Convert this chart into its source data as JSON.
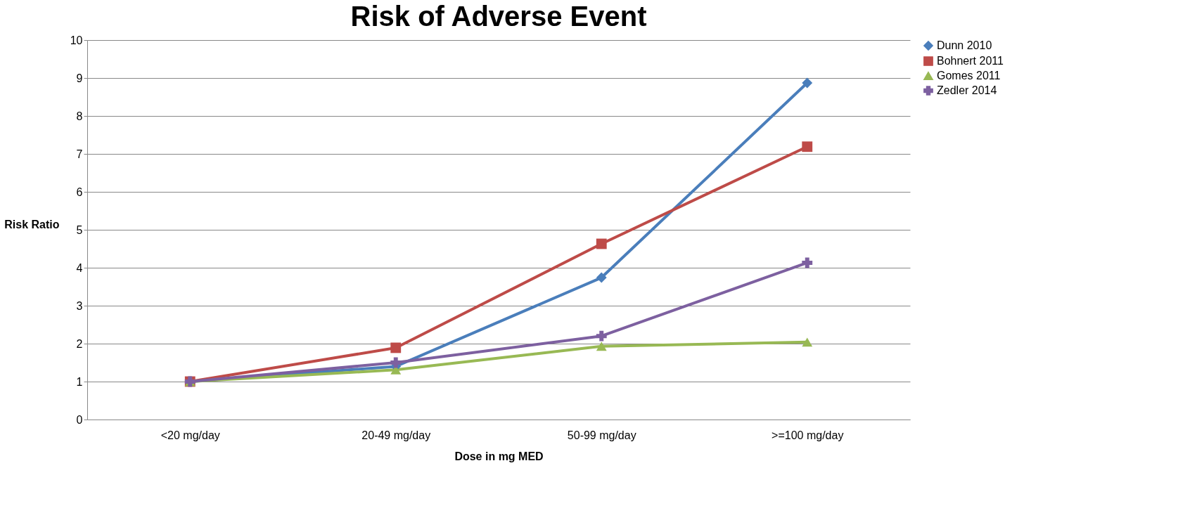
{
  "chart_data": {
    "type": "line",
    "title": "Risk of Adverse Event",
    "xlabel": "Dose in mg MED",
    "ylabel": "Risk Ratio",
    "categories": [
      "<20 mg/day",
      "20-49 mg/day",
      "50-99 mg/day",
      ">=100 mg/day"
    ],
    "series": [
      {
        "name": "Dunn 2010",
        "color": "#4a7ebb",
        "marker": "diamond",
        "values": [
          1,
          1.4,
          3.74,
          8.87
        ]
      },
      {
        "name": "Bohnert 2011",
        "color": "#be4b48",
        "marker": "square",
        "values": [
          1,
          1.89,
          4.63,
          7.19
        ]
      },
      {
        "name": "Gomes 2011",
        "color": "#98b954",
        "marker": "triangle",
        "values": [
          1,
          1.31,
          1.93,
          2.04
        ]
      },
      {
        "name": "Zedler 2014",
        "color": "#7d60a0",
        "marker": "cross",
        "values": [
          1,
          1.5,
          2.2,
          4.13
        ]
      }
    ],
    "ylim": [
      0,
      10
    ],
    "yticks": [
      0,
      1,
      2,
      3,
      4,
      5,
      6,
      7,
      8,
      9,
      10
    ],
    "grid": "y",
    "legend": "right",
    "line_style": "solid"
  }
}
